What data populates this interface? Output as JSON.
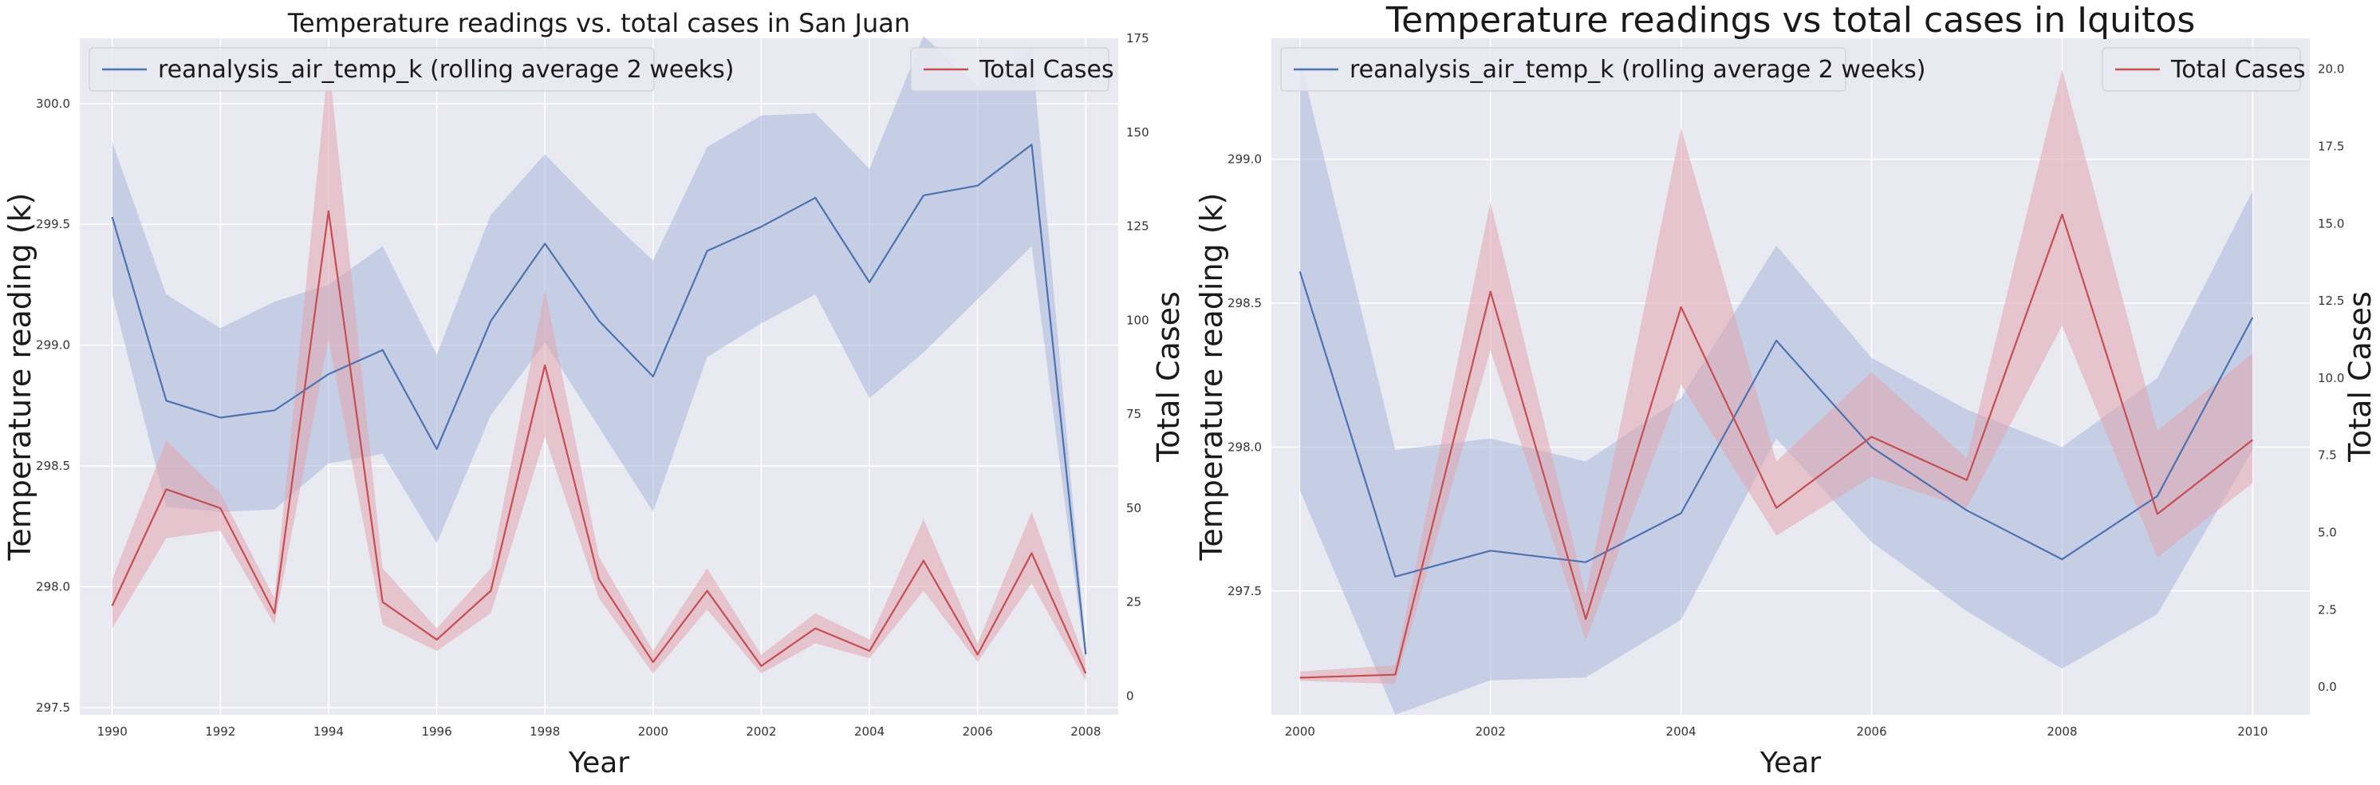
{
  "colors": {
    "background": "#e9e9f1",
    "grid": "#ffffff",
    "temp_line": "#4c72b0",
    "temp_band": "#a9b8da",
    "cases_line": "#c44e52",
    "cases_band": "#e2a6ae"
  },
  "chart_data": [
    {
      "type": "line",
      "title": "Temperature readings vs. total cases in San Juan",
      "xlabel": "Year",
      "ylabel": "Temperature reading (k)",
      "y2label": "Total Cases",
      "xlim": [
        1989.4,
        2008.6
      ],
      "ylim": [
        297.47,
        300.27
      ],
      "y2lim": [
        -5,
        175
      ],
      "xticks": [
        1990,
        1992,
        1994,
        1996,
        1998,
        2000,
        2002,
        2004,
        2006,
        2008
      ],
      "yticks": [
        297.5,
        298.0,
        298.5,
        299.0,
        299.5,
        300.0
      ],
      "y2ticks": [
        0,
        25,
        50,
        75,
        100,
        125,
        150,
        175
      ],
      "grid": true,
      "legend": [
        {
          "label": "reanalysis_air_temp_k (rolling average 2 weeks)",
          "placement": "top-left",
          "series": "temp"
        },
        {
          "label": "Total Cases",
          "placement": "top-right",
          "series": "cases"
        }
      ],
      "x": [
        1990,
        1991,
        1992,
        1993,
        1994,
        1995,
        1996,
        1997,
        1998,
        1999,
        2000,
        2001,
        2002,
        2003,
        2004,
        2005,
        2006,
        2007,
        2008
      ],
      "series": [
        {
          "name": "reanalysis_air_temp_k (rolling average 2 weeks)",
          "axis": "left",
          "values": [
            299.53,
            298.77,
            298.7,
            298.73,
            298.88,
            298.98,
            298.57,
            299.1,
            299.42,
            299.1,
            298.87,
            299.39,
            299.49,
            299.61,
            299.26,
            299.62,
            299.66,
            299.83,
            297.72
          ],
          "lower": [
            299.21,
            298.33,
            298.31,
            298.32,
            298.51,
            298.55,
            298.18,
            298.71,
            299.01,
            298.66,
            298.31,
            298.95,
            299.09,
            299.21,
            298.78,
            298.97,
            299.19,
            299.41,
            297.68
          ],
          "upper": [
            299.84,
            299.21,
            299.07,
            299.18,
            299.25,
            299.41,
            298.96,
            299.54,
            299.79,
            299.56,
            299.35,
            299.82,
            299.95,
            299.96,
            299.73,
            300.28,
            300.07,
            300.23,
            297.76
          ]
        },
        {
          "name": "Total Cases",
          "axis": "right",
          "values": [
            24,
            55,
            50,
            22,
            129,
            25,
            15,
            28,
            88,
            31,
            9,
            28,
            8,
            18,
            12,
            36,
            11,
            38,
            6
          ],
          "lower": [
            18,
            42,
            44,
            19,
            95,
            19,
            12,
            22,
            69,
            26,
            6,
            23,
            6,
            14,
            10,
            28,
            9,
            30,
            4
          ],
          "upper": [
            31,
            68,
            54,
            26,
            169,
            34,
            18,
            34,
            108,
            37,
            12,
            34,
            11,
            22,
            15,
            47,
            14,
            49,
            9
          ]
        }
      ]
    },
    {
      "type": "line",
      "title": "Temperature readings vs total cases in Iquitos",
      "xlabel": "Year",
      "ylabel": "Temperature reading (k)",
      "y2label": "Total Cases",
      "xlim": [
        1999.7,
        2010.6
      ],
      "ylim": [
        297.07,
        299.42
      ],
      "y2lim": [
        -0.9,
        21.0
      ],
      "xticks": [
        2000,
        2002,
        2004,
        2006,
        2008,
        2010
      ],
      "yticks": [
        297.5,
        298.0,
        298.5,
        299.0
      ],
      "y2ticks": [
        0.0,
        2.5,
        5.0,
        7.5,
        10.0,
        12.5,
        15.0,
        17.5,
        20.0
      ],
      "grid": true,
      "legend": [
        {
          "label": "reanalysis_air_temp_k (rolling average 2 weeks)",
          "placement": "top-left",
          "series": "temp"
        },
        {
          "label": "Total Cases",
          "placement": "top-right",
          "series": "cases"
        }
      ],
      "x": [
        2000,
        2001,
        2002,
        2003,
        2004,
        2005,
        2006,
        2007,
        2008,
        2009,
        2010
      ],
      "series": [
        {
          "name": "reanalysis_air_temp_k (rolling average 2 weeks)",
          "axis": "left",
          "values": [
            298.61,
            297.55,
            297.64,
            297.6,
            297.77,
            298.37,
            298.0,
            297.78,
            297.61,
            297.83,
            298.45
          ],
          "lower": [
            297.85,
            297.07,
            297.19,
            297.2,
            297.4,
            298.03,
            297.67,
            297.43,
            297.23,
            297.42,
            297.99
          ],
          "upper": [
            299.35,
            297.99,
            298.03,
            297.95,
            298.17,
            298.7,
            298.31,
            298.13,
            298.0,
            298.24,
            298.89
          ]
        },
        {
          "name": "Total Cases",
          "axis": "right",
          "values": [
            0.3,
            0.4,
            12.8,
            2.2,
            12.3,
            5.8,
            8.1,
            6.7,
            15.3,
            5.6,
            8.0
          ],
          "lower": [
            0.2,
            0.1,
            10.9,
            1.5,
            9.8,
            4.9,
            6.8,
            5.8,
            11.7,
            4.2,
            6.6
          ],
          "upper": [
            0.5,
            0.7,
            15.7,
            3.0,
            18.1,
            7.3,
            10.2,
            7.4,
            20.0,
            8.3,
            10.8
          ]
        }
      ]
    }
  ]
}
